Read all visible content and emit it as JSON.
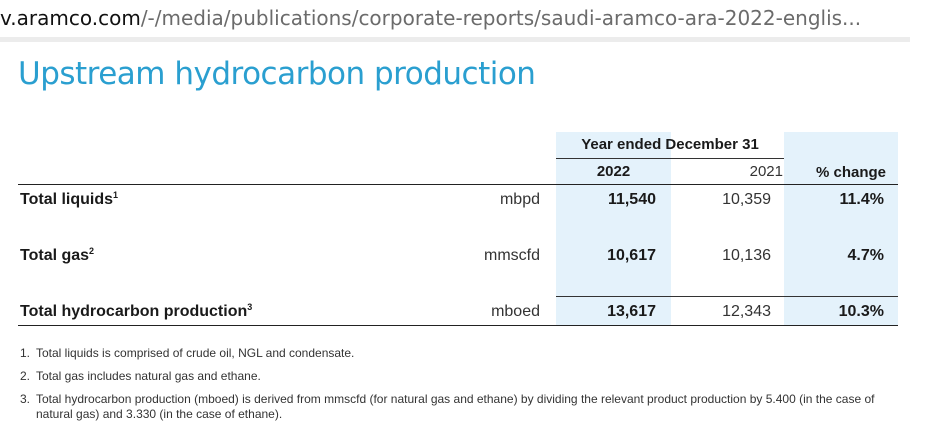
{
  "browser": {
    "url_domain": "v.aramco.com",
    "url_path": "/-/media/publications/corporate-reports/saudi-aramco-ara-2022-englis..."
  },
  "document": {
    "title": "Upstream hydrocarbon production",
    "table": {
      "group_header": "Year ended December 31",
      "col_2022": "2022",
      "col_2021": "2021",
      "col_change": "% change",
      "rows": [
        {
          "label": "Total liquids",
          "sup": "1",
          "unit": "mbpd",
          "v2022": "11,540",
          "v2021": "10,359",
          "change": "11.4%"
        },
        {
          "label": "Total gas",
          "sup": "2",
          "unit": "mmscfd",
          "v2022": "10,617",
          "v2021": "10,136",
          "change": "4.7%"
        },
        {
          "label": "Total hydrocarbon production",
          "sup": "3",
          "unit": "mboed",
          "v2022": "13,617",
          "v2021": "12,343",
          "change": "10.3%"
        }
      ]
    },
    "notes": [
      {
        "num": "1.",
        "text": "Total liquids is comprised of crude oil, NGL and condensate."
      },
      {
        "num": "2.",
        "text": "Total gas includes natural gas and ethane."
      },
      {
        "num": "3.",
        "text": "Total hydrocarbon production (mboed) is derived from mmscfd (for natural gas and ethane) by dividing the relevant product production by 5.400 (in the case of natural gas) and 3.330 (in the case of ethane)."
      }
    ]
  }
}
